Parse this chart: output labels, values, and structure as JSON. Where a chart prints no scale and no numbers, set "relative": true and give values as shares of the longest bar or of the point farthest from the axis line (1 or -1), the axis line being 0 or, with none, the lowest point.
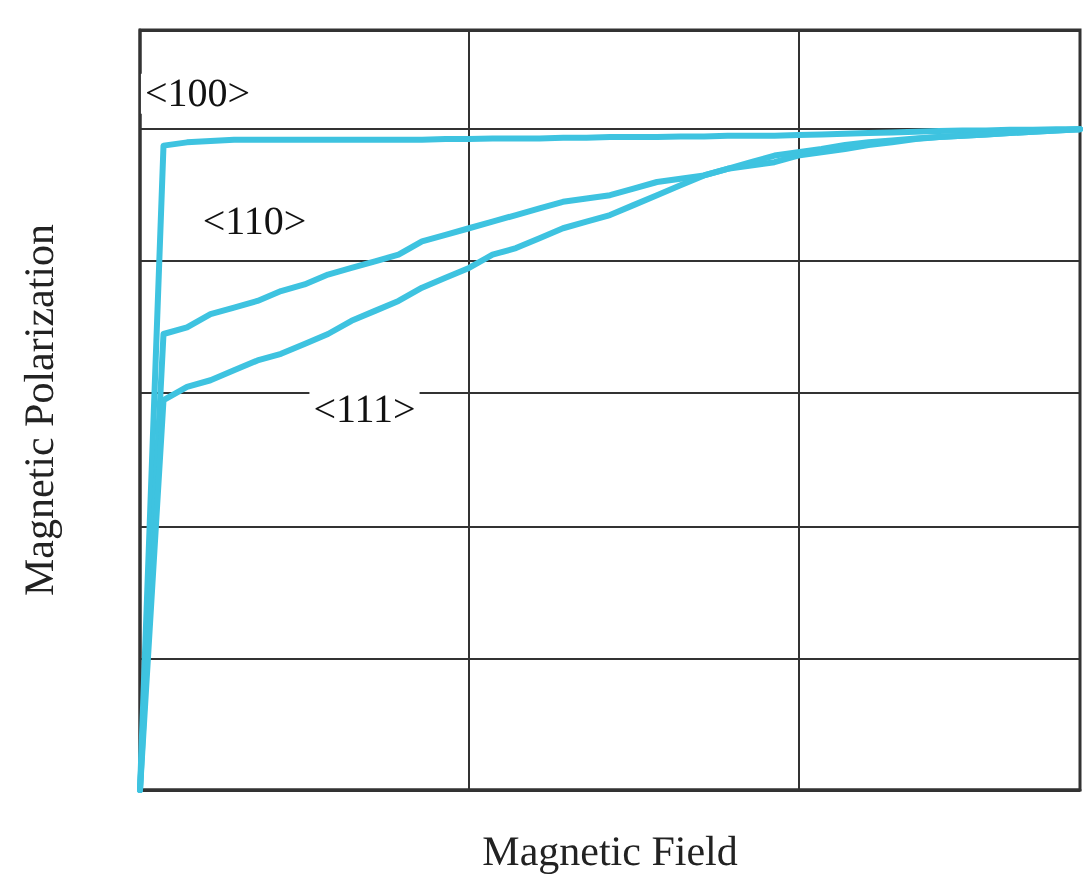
{
  "chart_data": {
    "type": "line",
    "relative": true,
    "xlabel": "Magnetic Field",
    "ylabel": "Magnetic Polarization",
    "grid": true,
    "legend": false,
    "marker": "none",
    "line_style": "solid",
    "categories": [
      null,
      null,
      null,
      null,
      null,
      null,
      null,
      null,
      null,
      null,
      null,
      null,
      null,
      null,
      null,
      null,
      null,
      null,
      null,
      null,
      null,
      null,
      null,
      null,
      null,
      null,
      null,
      null,
      null,
      null,
      null,
      null,
      null,
      null,
      null,
      null,
      null,
      null,
      null,
      null,
      null
    ],
    "series": [
      {
        "name": "<100>",
        "color": "#3ec3e0",
        "values": [
          0,
          0.975,
          0.98,
          0.982,
          0.984,
          0.984,
          0.984,
          0.984,
          0.984,
          0.984,
          0.984,
          0.984,
          0.984,
          0.985,
          0.985,
          0.986,
          0.986,
          0.986,
          0.987,
          0.987,
          0.988,
          0.988,
          0.988,
          0.989,
          0.989,
          0.99,
          0.99,
          0.99,
          0.991,
          0.992,
          0.993,
          0.994,
          0.995,
          0.996,
          0.997,
          0.998,
          0.998,
          0.999,
          0.999,
          1,
          1
        ]
      },
      {
        "name": "<110>",
        "color": "#3ec3e0",
        "values": [
          0,
          0.69,
          0.7,
          0.72,
          0.73,
          0.74,
          0.755,
          0.765,
          0.78,
          0.79,
          0.8,
          0.81,
          0.83,
          0.84,
          0.85,
          0.86,
          0.87,
          0.88,
          0.89,
          0.895,
          0.9,
          0.91,
          0.92,
          0.925,
          0.93,
          0.94,
          0.945,
          0.95,
          0.96,
          0.965,
          0.97,
          0.976,
          0.98,
          0.985,
          0.988,
          0.99,
          0.992,
          0.994,
          0.996,
          0.998,
          1
        ]
      },
      {
        "name": "<111>",
        "color": "#3ec3e0",
        "values": [
          0,
          0.59,
          0.61,
          0.62,
          0.635,
          0.65,
          0.66,
          0.675,
          0.69,
          0.71,
          0.725,
          0.74,
          0.76,
          0.775,
          0.79,
          0.81,
          0.82,
          0.835,
          0.85,
          0.86,
          0.87,
          0.885,
          0.9,
          0.915,
          0.93,
          0.94,
          0.95,
          0.96,
          0.965,
          0.97,
          0.976,
          0.98,
          0.983,
          0.986,
          0.988,
          0.99,
          0.992,
          0.994,
          0.996,
          0.998,
          1
        ]
      }
    ]
  }
}
